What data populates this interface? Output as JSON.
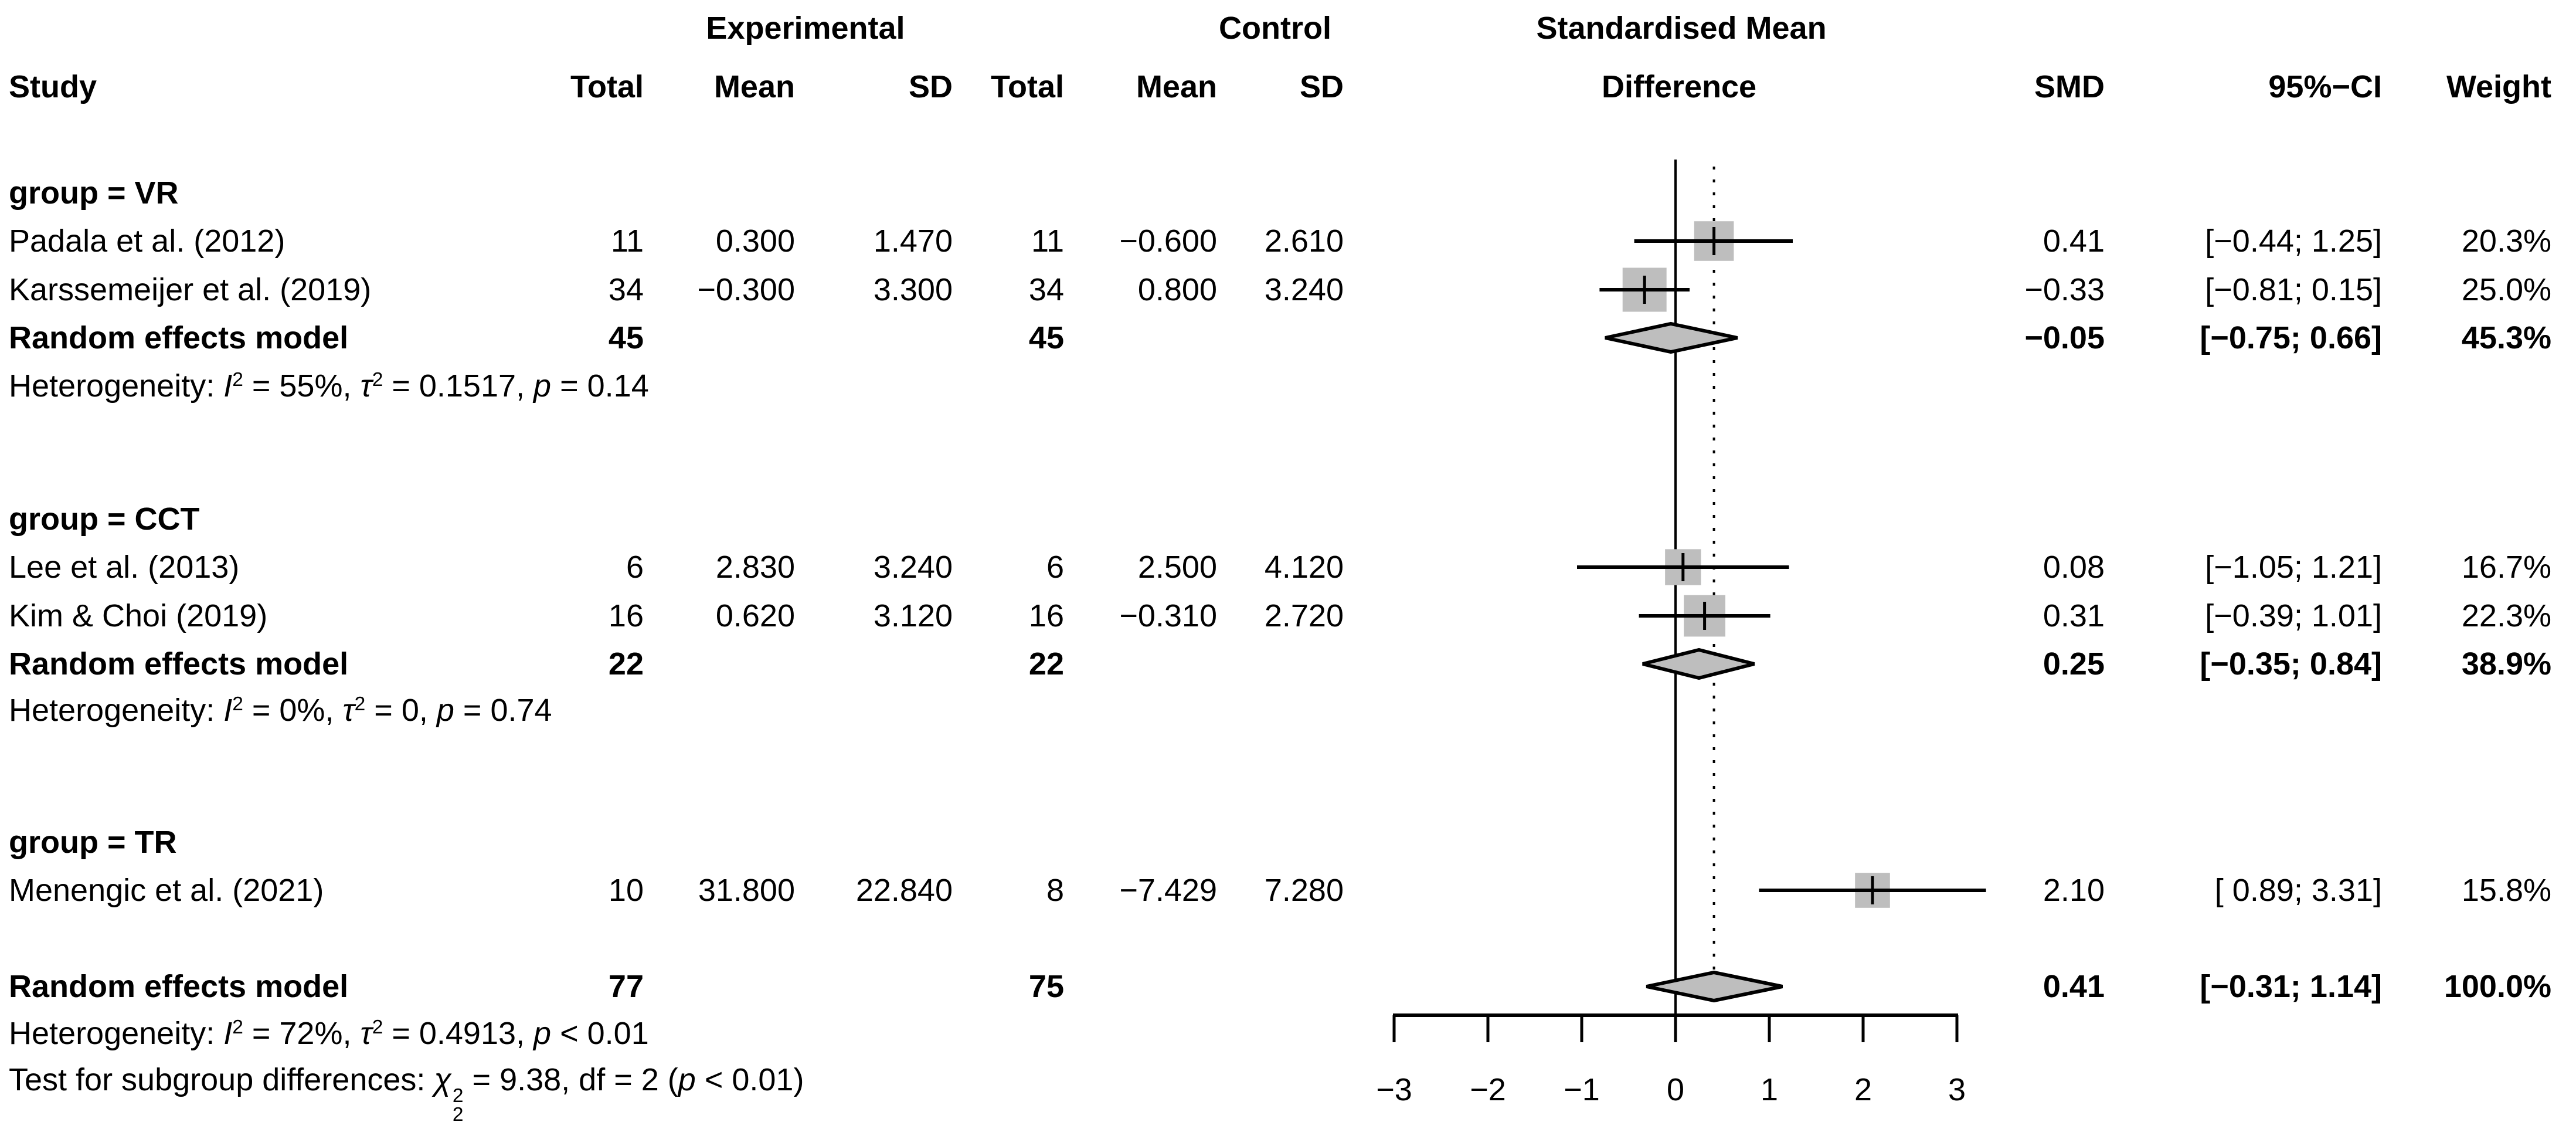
{
  "meta": {
    "background": "#ffffff",
    "text_color": "#000000",
    "square_color": "#bebebe",
    "diamond_fill": "#bebebe",
    "line_color": "#000000"
  },
  "header": {
    "experimental": "Experimental",
    "control": "Control",
    "smd_line1": "Standardised Mean",
    "smd_line2": "Difference",
    "study": "Study",
    "total": "Total",
    "mean": "Mean",
    "sd": "SD",
    "smd": "SMD",
    "ci": "95%−CI",
    "weight": "Weight"
  },
  "rows": [
    {
      "kind": "group",
      "label": "group = VR"
    },
    {
      "kind": "study",
      "label": "Padala et al. (2012)",
      "exp_total": "11",
      "exp_mean": "0.300",
      "exp_sd": "1.470",
      "ctrl_total": "11",
      "ctrl_mean": "−0.600",
      "ctrl_sd": "2.610",
      "smd": "0.41",
      "ci": "[−0.44; 1.25]",
      "weight": "20.3%"
    },
    {
      "kind": "study",
      "label": "Karssemeijer et al. (2019)",
      "exp_total": "34",
      "exp_mean": "−0.300",
      "exp_sd": "3.300",
      "ctrl_total": "34",
      "ctrl_mean": "0.800",
      "ctrl_sd": "3.240",
      "smd": "−0.33",
      "ci": "[−0.81; 0.15]",
      "weight": "25.0%"
    },
    {
      "kind": "pooled",
      "label": "Random effects model",
      "exp_total": "45",
      "exp_mean": "",
      "exp_sd": "",
      "ctrl_total": "45",
      "ctrl_mean": "",
      "ctrl_sd": "",
      "smd": "−0.05",
      "ci": "[−0.75; 0.66]",
      "weight": "45.3%"
    },
    {
      "kind": "note",
      "parts": [
        {
          "t": "Heterogeneity: "
        },
        {
          "t": "I",
          "i": 1
        },
        {
          "t": "2",
          "sup": 1
        },
        {
          "t": " = 55%, "
        },
        {
          "t": "τ",
          "i": 1
        },
        {
          "t": "2",
          "sup": 1
        },
        {
          "t": " = 0.1517, "
        },
        {
          "t": "p",
          "i": 1
        },
        {
          "t": " = 0.14"
        }
      ]
    },
    {
      "kind": "group",
      "label": "group = CCT"
    },
    {
      "kind": "study",
      "label": "Lee et al. (2013)",
      "exp_total": "6",
      "exp_mean": "2.830",
      "exp_sd": "3.240",
      "ctrl_total": "6",
      "ctrl_mean": "2.500",
      "ctrl_sd": "4.120",
      "smd": "0.08",
      "ci": "[−1.05; 1.21]",
      "weight": "16.7%"
    },
    {
      "kind": "study",
      "label": "Kim & Choi (2019)",
      "exp_total": "16",
      "exp_mean": "0.620",
      "exp_sd": "3.120",
      "ctrl_total": "16",
      "ctrl_mean": "−0.310",
      "ctrl_sd": "2.720",
      "smd": "0.31",
      "ci": "[−0.39; 1.01]",
      "weight": "22.3%"
    },
    {
      "kind": "pooled",
      "label": "Random effects model",
      "exp_total": "22",
      "exp_mean": "",
      "exp_sd": "",
      "ctrl_total": "22",
      "ctrl_mean": "",
      "ctrl_sd": "",
      "smd": "0.25",
      "ci": "[−0.35; 0.84]",
      "weight": "38.9%"
    },
    {
      "kind": "note",
      "parts": [
        {
          "t": "Heterogeneity: "
        },
        {
          "t": "I",
          "i": 1
        },
        {
          "t": "2",
          "sup": 1
        },
        {
          "t": " = 0%, "
        },
        {
          "t": "τ",
          "i": 1
        },
        {
          "t": "2",
          "sup": 1
        },
        {
          "t": " = 0, "
        },
        {
          "t": "p",
          "i": 1
        },
        {
          "t": " = 0.74"
        }
      ]
    },
    {
      "kind": "group",
      "label": "group = TR"
    },
    {
      "kind": "study",
      "label": "Menengic et al. (2021)",
      "exp_total": "10",
      "exp_mean": "31.800",
      "exp_sd": "22.840",
      "ctrl_total": "8",
      "ctrl_mean": "−7.429",
      "ctrl_sd": "7.280",
      "smd": "2.10",
      "ci": "[ 0.89; 3.31]",
      "weight": "15.8%"
    },
    {
      "kind": "pooled",
      "label": "Random effects model",
      "exp_total": "77",
      "exp_mean": "",
      "exp_sd": "",
      "ctrl_total": "75",
      "ctrl_mean": "",
      "ctrl_sd": "",
      "smd": "0.41",
      "ci": "[−0.31; 1.14]",
      "weight": "100.0%"
    },
    {
      "kind": "note",
      "parts": [
        {
          "t": "Heterogeneity: "
        },
        {
          "t": "I",
          "i": 1
        },
        {
          "t": "2",
          "sup": 1
        },
        {
          "t": " = 72%, "
        },
        {
          "t": "τ",
          "i": 1
        },
        {
          "t": "2",
          "sup": 1
        },
        {
          "t": " = 0.4913, "
        },
        {
          "t": "p",
          "i": 1
        },
        {
          "t": " < 0.01"
        }
      ]
    },
    {
      "kind": "note",
      "parts": [
        {
          "t": "Test for subgroup differences: "
        },
        {
          "t": "χ",
          "i": 1,
          "stack": {
            "sup": "2",
            "sub": "2"
          }
        },
        {
          "t": " = 9.38, df = 2 ("
        },
        {
          "t": "p",
          "i": 1
        },
        {
          "t": " < 0.01)"
        }
      ]
    }
  ],
  "chart_data": {
    "type": "scatter",
    "subtype": "forest_plot",
    "effect_measure": "Standardised Mean Difference (SMD)",
    "x_axis": {
      "ticks": [
        -3,
        -2,
        -1,
        0,
        1,
        2,
        3
      ],
      "tick_labels": [
        "−3",
        "−2",
        "−1",
        "0",
        "1",
        "2",
        "3"
      ],
      "range": [
        -3,
        3
      ]
    },
    "reference_lines": [
      {
        "x": 0,
        "style": "solid"
      },
      {
        "x": 0.41,
        "style": "dotted"
      }
    ],
    "groups": [
      "VR",
      "CCT",
      "TR"
    ],
    "studies": [
      {
        "group": "VR",
        "study": "Padala et al. (2012)",
        "exp_total": 11,
        "exp_mean": 0.3,
        "exp_sd": 1.47,
        "ctrl_total": 11,
        "ctrl_mean": -0.6,
        "ctrl_sd": 2.61,
        "smd": 0.41,
        "ci_low": -0.44,
        "ci_high": 1.25,
        "weight_pct": 20.3
      },
      {
        "group": "VR",
        "study": "Karssemeijer et al. (2019)",
        "exp_total": 34,
        "exp_mean": -0.3,
        "exp_sd": 3.3,
        "ctrl_total": 34,
        "ctrl_mean": 0.8,
        "ctrl_sd": 3.24,
        "smd": -0.33,
        "ci_low": -0.81,
        "ci_high": 0.15,
        "weight_pct": 25.0
      },
      {
        "group": "CCT",
        "study": "Lee et al. (2013)",
        "exp_total": 6,
        "exp_mean": 2.83,
        "exp_sd": 3.24,
        "ctrl_total": 6,
        "ctrl_mean": 2.5,
        "ctrl_sd": 4.12,
        "smd": 0.08,
        "ci_low": -1.05,
        "ci_high": 1.21,
        "weight_pct": 16.7
      },
      {
        "group": "CCT",
        "study": "Kim & Choi (2019)",
        "exp_total": 16,
        "exp_mean": 0.62,
        "exp_sd": 3.12,
        "ctrl_total": 16,
        "ctrl_mean": -0.31,
        "ctrl_sd": 2.72,
        "smd": 0.31,
        "ci_low": -0.39,
        "ci_high": 1.01,
        "weight_pct": 22.3
      },
      {
        "group": "TR",
        "study": "Menengic et al. (2021)",
        "exp_total": 10,
        "exp_mean": 31.8,
        "exp_sd": 22.84,
        "ctrl_total": 8,
        "ctrl_mean": -7.429,
        "ctrl_sd": 7.28,
        "smd": 2.1,
        "ci_low": 0.89,
        "ci_high": 3.31,
        "weight_pct": 15.8
      }
    ],
    "pooled": [
      {
        "scope": "VR",
        "label": "Random effects model",
        "exp_total": 45,
        "ctrl_total": 45,
        "smd": -0.05,
        "ci_low": -0.75,
        "ci_high": 0.66,
        "weight_pct": 45.3
      },
      {
        "scope": "CCT",
        "label": "Random effects model",
        "exp_total": 22,
        "ctrl_total": 22,
        "smd": 0.25,
        "ci_low": -0.35,
        "ci_high": 0.84,
        "weight_pct": 38.9
      },
      {
        "scope": "Overall",
        "label": "Random effects model",
        "exp_total": 77,
        "ctrl_total": 75,
        "smd": 0.41,
        "ci_low": -0.31,
        "ci_high": 1.14,
        "weight_pct": 100.0
      }
    ],
    "heterogeneity": [
      {
        "scope": "VR",
        "I2": "55%",
        "tau2": "0.1517",
        "p": "0.14"
      },
      {
        "scope": "CCT",
        "I2": "0%",
        "tau2": "0",
        "p": "0.74"
      },
      {
        "scope": "Overall",
        "I2": "72%",
        "tau2": "0.4913",
        "p": "< 0.01"
      }
    ],
    "subgroup_test": {
      "chi2": 9.38,
      "df": 2,
      "p": "< 0.01"
    }
  }
}
